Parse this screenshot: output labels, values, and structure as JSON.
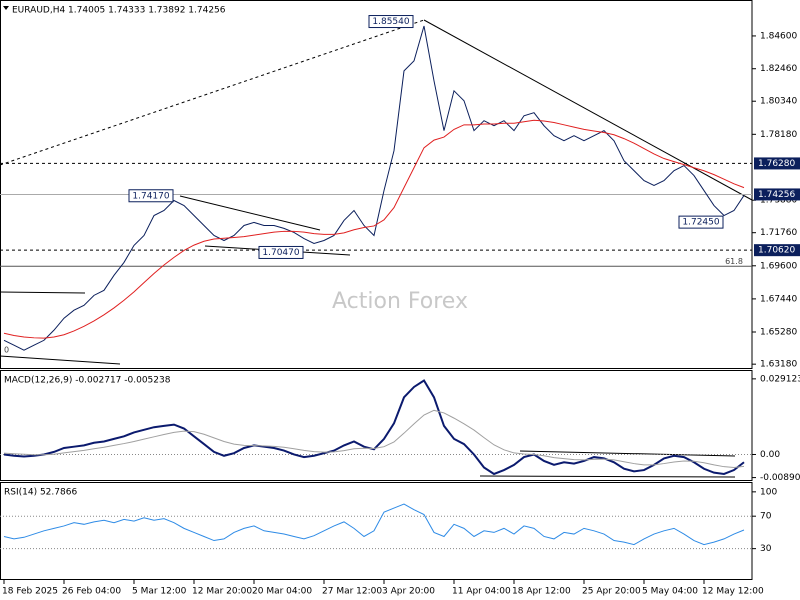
{
  "chart_data": [
    {
      "type": "line",
      "title": "EURAUD,H4 1.74005 1.74333 1.73892 1.74256",
      "watermark": "Action Forex",
      "categories": [
        "18 Feb 2025",
        null,
        null,
        null,
        null,
        null,
        "26 Feb 04:00",
        null,
        null,
        null,
        null,
        null,
        null,
        "5 Mar 12:00",
        null,
        null,
        null,
        null,
        null,
        "12 Mar 20:00",
        null,
        null,
        null,
        null,
        null,
        "20 Mar 04:00",
        null,
        null,
        null,
        null,
        null,
        null,
        "27 Mar 12:00",
        null,
        null,
        null,
        null,
        null,
        "3 Apr 20:00",
        null,
        null,
        null,
        null,
        null,
        null,
        "11 Apr 04:00",
        null,
        null,
        null,
        null,
        null,
        "18 Apr 12:00",
        null,
        null,
        null,
        null,
        null,
        null,
        "25 Apr 20:00",
        null,
        null,
        null,
        null,
        null,
        "5 May 04:00",
        null,
        null,
        null,
        null,
        null,
        "12 May 12:00",
        null,
        null,
        null,
        null
      ],
      "series": [
        {
          "color": "#0b1f5c",
          "values": [
            1.6474,
            1.6442,
            1.6409,
            1.6442,
            1.6474,
            1.654,
            1.6618,
            1.667,
            1.6702,
            1.6767,
            1.68,
            1.6898,
            1.6982,
            1.7093,
            1.7158,
            1.7288,
            1.7321,
            1.7386,
            1.7353,
            1.7288,
            1.7223,
            1.7158,
            1.7125,
            1.7158,
            1.7223,
            1.7243,
            1.7223,
            1.7223,
            1.7204,
            1.7178,
            1.7138,
            1.7106,
            1.7125,
            1.7158,
            1.7256,
            1.7321,
            1.7223,
            1.7158,
            1.7451,
            1.7711,
            1.8232,
            1.8297,
            1.8525,
            1.8167,
            1.7842,
            1.8102,
            1.8037,
            1.7842,
            1.7907,
            1.7874,
            1.7907,
            1.7842,
            1.7939,
            1.7959,
            1.7874,
            1.7809,
            1.7776,
            1.7809,
            1.7776,
            1.7809,
            1.7842,
            1.7776,
            1.7646,
            1.7581,
            1.7516,
            1.7484,
            1.7516,
            1.7581,
            1.7614,
            1.7549,
            1.7451,
            1.7353,
            1.7288,
            1.7321,
            1.7419
          ]
        },
        {
          "color": "#e02020",
          "values": [
            1.652,
            1.6505,
            1.6495,
            1.649,
            1.6488,
            1.6495,
            1.651,
            1.6535,
            1.6565,
            1.66,
            1.664,
            1.6685,
            1.6735,
            1.679,
            1.685,
            1.691,
            1.6965,
            1.7015,
            1.706,
            1.7095,
            1.712,
            1.7135,
            1.714,
            1.7145,
            1.715,
            1.716,
            1.717,
            1.718,
            1.7185,
            1.7185,
            1.718,
            1.717,
            1.7165,
            1.7165,
            1.7175,
            1.7195,
            1.721,
            1.722,
            1.726,
            1.734,
            1.747,
            1.76,
            1.773,
            1.778,
            1.78,
            1.785,
            1.788,
            1.788,
            1.7885,
            1.7885,
            1.789,
            1.789,
            1.79,
            1.791,
            1.7905,
            1.7895,
            1.788,
            1.7865,
            1.785,
            1.784,
            1.783,
            1.7815,
            1.779,
            1.776,
            1.7725,
            1.769,
            1.766,
            1.764,
            1.762,
            1.76,
            1.758,
            1.7555,
            1.7525,
            1.7495,
            1.747
          ]
        }
      ],
      "ylim": [
        1.6293,
        1.8688
      ],
      "yticks": [
        {
          "value": 1.846,
          "label": "1.84600"
        },
        {
          "value": 1.8246,
          "label": "1.82460"
        },
        {
          "value": 1.8034,
          "label": "1.80340"
        },
        {
          "value": 1.7818,
          "label": "1.78180"
        },
        {
          "value": 1.7388,
          "label": "1.73880"
        },
        {
          "value": 1.7176,
          "label": "1.71760"
        },
        {
          "value": 1.696,
          "label": "1.69600"
        },
        {
          "value": 1.6744,
          "label": "1.67440"
        },
        {
          "value": 1.6528,
          "label": "1.65280"
        },
        {
          "value": 1.6318,
          "label": "1.63180"
        }
      ],
      "levels": [
        {
          "value": 1.7628,
          "label": "1.76280",
          "style": "dashed"
        },
        {
          "value": 1.7062,
          "label": "1.70620",
          "style": "dashed"
        },
        {
          "value": 1.74256,
          "label": "1.74256",
          "style": "solid"
        }
      ],
      "fibs": [
        {
          "value": 1.6957,
          "label": "61.8",
          "index": 73
        },
        {
          "value": 1.6378,
          "label": "0",
          "index": 0
        }
      ],
      "annotations": [
        {
          "value": 1.8554,
          "label": "1.85540",
          "index": 41
        },
        {
          "value": 1.7417,
          "label": "1.74170",
          "index": 17
        },
        {
          "value": 1.7047,
          "label": "1.70470",
          "index": 30
        },
        {
          "value": 1.7245,
          "label": "1.72450",
          "index": 72
        }
      ]
    },
    {
      "type": "line",
      "title": "MACD(12,26,9) -0.002717 -0.005238",
      "series": [
        {
          "color": "#0b1a6e",
          "values": [
            0.0,
            -0.0005,
            -0.0008,
            -0.0005,
            0.0,
            0.001,
            0.0025,
            0.003,
            0.0035,
            0.0045,
            0.005,
            0.006,
            0.007,
            0.0085,
            0.0095,
            0.0105,
            0.011,
            0.0115,
            0.01,
            0.007,
            0.004,
            0.001,
            -0.0005,
            0.0005,
            0.0025,
            0.0035,
            0.003,
            0.0025,
            0.0015,
            0.0,
            -0.001,
            -0.0005,
            0.0005,
            0.0015,
            0.0035,
            0.005,
            0.003,
            0.002,
            0.006,
            0.012,
            0.022,
            0.026,
            0.0285,
            0.022,
            0.011,
            0.006,
            0.004,
            0.0,
            -0.005,
            -0.0075,
            -0.006,
            -0.004,
            -0.001,
            0.0,
            -0.0025,
            -0.004,
            -0.003,
            -0.0035,
            -0.0025,
            -0.001,
            -0.0015,
            -0.003,
            -0.0055,
            -0.0065,
            -0.006,
            -0.004,
            -0.0015,
            -0.0005,
            -0.001,
            -0.003,
            -0.0055,
            -0.007,
            -0.0075,
            -0.006,
            -0.003
          ]
        },
        {
          "color": "#a0a0a0",
          "values": [
            0.0005,
            0.0003,
            0.0001,
            -0.0001,
            -0.0001,
            0.0001,
            0.0006,
            0.0011,
            0.0016,
            0.0022,
            0.0028,
            0.0035,
            0.0042,
            0.005,
            0.0059,
            0.0068,
            0.0077,
            0.0085,
            0.009,
            0.0088,
            0.0078,
            0.0064,
            0.005,
            0.004,
            0.0035,
            0.0034,
            0.0033,
            0.0031,
            0.0028,
            0.0022,
            0.0016,
            0.0011,
            0.0009,
            0.001,
            0.0015,
            0.0022,
            0.0024,
            0.0023,
            0.003,
            0.0048,
            0.0082,
            0.0118,
            0.0152,
            0.017,
            0.016,
            0.014,
            0.0118,
            0.0094,
            0.0065,
            0.0037,
            0.0018,
            0.0006,
            0.0002,
            0.0,
            -0.0005,
            -0.0012,
            -0.0016,
            -0.002,
            -0.0021,
            -0.0019,
            -0.0018,
            -0.0021,
            -0.0028,
            -0.0035,
            -0.004,
            -0.004,
            -0.0035,
            -0.0029,
            -0.0025,
            -0.0026,
            -0.0032,
            -0.004,
            -0.0047,
            -0.005,
            -0.0046
          ]
        }
      ],
      "ylim": [
        -0.00983,
        0.03215
      ],
      "yticks": [
        0.029123,
        {
          "value": 0,
          "label": "0.00"
        },
        -0.008901
      ],
      "dotted": [
        0
      ]
    },
    {
      "type": "line",
      "title": "RSI(14) 52.7866",
      "series": [
        {
          "color": "#2e8be6",
          "values": [
            45,
            42,
            44,
            48,
            52,
            55,
            58,
            62,
            60,
            63,
            65,
            62,
            66,
            64,
            68,
            65,
            67,
            62,
            55,
            50,
            45,
            40,
            42,
            50,
            55,
            58,
            52,
            50,
            48,
            45,
            42,
            46,
            52,
            58,
            63,
            55,
            45,
            52,
            75,
            80,
            85,
            78,
            72,
            50,
            45,
            60,
            55,
            45,
            52,
            50,
            55,
            48,
            58,
            55,
            45,
            42,
            50,
            48,
            55,
            52,
            48,
            40,
            38,
            35,
            42,
            48,
            52,
            55,
            48,
            40,
            35,
            38,
            42,
            48,
            53
          ]
        }
      ],
      "ylim": [
        -7.4,
        110.9
      ],
      "yticks": [
        100,
        70,
        30
      ],
      "dotted": [
        70,
        30
      ]
    }
  ]
}
